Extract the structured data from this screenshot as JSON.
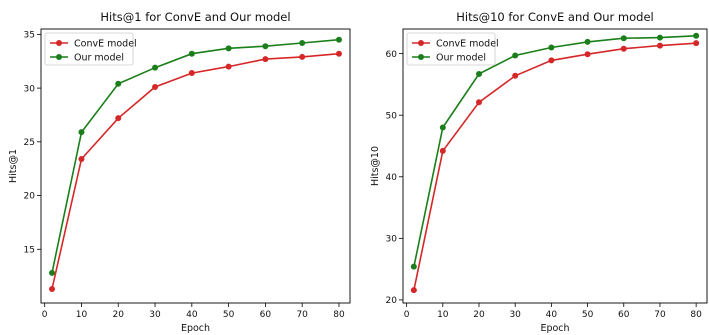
{
  "chart_data": [
    {
      "type": "line",
      "title": "Hits@1 for ConvE and Our model",
      "xlabel": "Epoch",
      "ylabel": "Hits@1",
      "xlim": [
        -1,
        83
      ],
      "ylim": [
        10,
        35.5
      ],
      "xticks": [
        0,
        10,
        20,
        30,
        40,
        50,
        60,
        70,
        80
      ],
      "yticks": [
        15,
        20,
        25,
        30,
        35
      ],
      "legend_position": "upper-left",
      "grid": false,
      "x": [
        2,
        10,
        20,
        30,
        40,
        50,
        60,
        70,
        80
      ],
      "series": [
        {
          "name": "ConvE model",
          "color": "#d62728",
          "values": [
            11.3,
            23.4,
            27.2,
            30.1,
            31.4,
            32.0,
            32.7,
            32.9,
            33.2
          ]
        },
        {
          "name": "Our model",
          "color": "#1a7f1a",
          "values": [
            12.8,
            25.9,
            30.4,
            31.9,
            33.2,
            33.7,
            33.9,
            34.2,
            34.5
          ]
        }
      ]
    },
    {
      "type": "line",
      "title": "Hits@10 for ConvE and Our model",
      "xlabel": "Epoch",
      "ylabel": "Hits@10",
      "xlim": [
        -1,
        83
      ],
      "ylim": [
        19.5,
        64
      ],
      "xticks": [
        0,
        10,
        20,
        30,
        40,
        50,
        60,
        70,
        80
      ],
      "yticks": [
        20,
        30,
        40,
        50,
        60
      ],
      "legend_position": "upper-left",
      "grid": false,
      "x": [
        2,
        10,
        20,
        30,
        40,
        50,
        60,
        70,
        80
      ],
      "series": [
        {
          "name": "ConvE model",
          "color": "#d62728",
          "values": [
            21.6,
            44.2,
            52.1,
            56.4,
            58.9,
            59.9,
            60.8,
            61.3,
            61.7
          ]
        },
        {
          "name": "Our model",
          "color": "#1a7f1a",
          "values": [
            25.4,
            48.0,
            56.7,
            59.7,
            61.0,
            61.9,
            62.5,
            62.6,
            62.9
          ]
        }
      ]
    }
  ]
}
